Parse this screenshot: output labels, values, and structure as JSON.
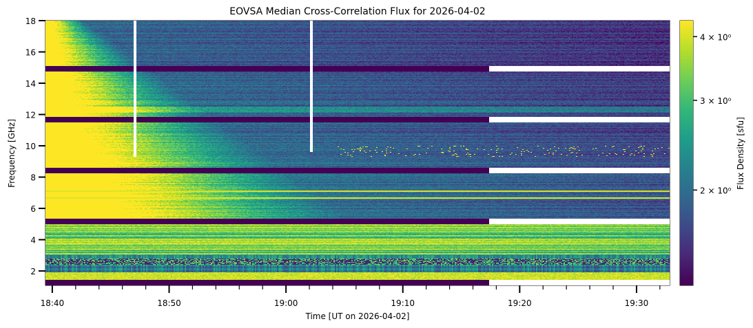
{
  "chart_data": {
    "type": "heatmap",
    "title": "EOVSA Median Cross-Correlation Flux for 2026-04-02",
    "xlabel": "Time [UT on 2026-04-02]",
    "ylabel": "Frequency [GHz]",
    "colorbar_label": "Flux Density [sfu]",
    "colormap": "viridis",
    "colorbar_scale": "log",
    "x_range": [
      "18:39:25",
      "19:32:50"
    ],
    "x_major_ticks": [
      "18:40",
      "18:50",
      "19:00",
      "19:10",
      "19:20",
      "19:30"
    ],
    "x_minor_tick_interval_min": 2,
    "y_range": [
      1.08,
      18.0
    ],
    "y_ticks": [
      2,
      4,
      6,
      8,
      10,
      12,
      14,
      16,
      18
    ],
    "colorbar_range": [
      1.3,
      4.3
    ],
    "colorbar_ticks": [
      {
        "value": 2,
        "label": "2 × 10⁰"
      },
      {
        "value": 3,
        "label": "3 × 10⁰"
      },
      {
        "value": 4,
        "label": "4 × 10⁰"
      }
    ],
    "masked_bands_ghz": [
      [
        14.75,
        15.1
      ],
      [
        11.5,
        11.85
      ],
      [
        8.25,
        8.6
      ],
      [
        5.0,
        5.35
      ],
      [
        1.08,
        1.45
      ]
    ],
    "masked_band_fill_before": "19:17:20",
    "data_gap_after": "19:17:20",
    "flare_description": "Bright emission (>4 sfu) at 5–11 GHz from 18:40 decaying by ~19:05; sporadic bright pixels near 9.5–10 GHz after 19:05",
    "vertical_blank_lines": [
      {
        "time": "18:47:05",
        "from_ghz": 9.3,
        "to_ghz": 18.0
      },
      {
        "time": "19:02:10",
        "from_ghz": 9.6,
        "to_ghz": 18.0
      }
    ],
    "persistent_bright_lines_ghz": [
      7.1,
      6.65
    ]
  },
  "colors": {
    "masked_band": "#440154",
    "gap": "#ffffff",
    "viridis_low": "#440154",
    "viridis_high": "#fde725"
  }
}
